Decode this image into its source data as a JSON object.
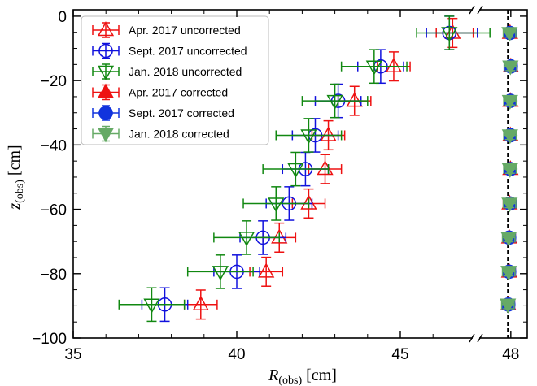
{
  "chart_data": {
    "type": "scatter",
    "xlabel": "R(obs) [cm]",
    "xlabel_main": "R",
    "xlabel_sub": "(obs)",
    "xlabel_unit": " [cm]",
    "ylabel": "z(obs) [cm]",
    "ylabel_main": "z",
    "ylabel_sub": "(obs)",
    "ylabel_unit": " [cm]",
    "xlim": [
      35,
      49
    ],
    "ylim": [
      -100,
      2
    ],
    "x_axis_break_note": "axis is broken between 46.6 and 47.7",
    "xticks": [
      35,
      40,
      45,
      48
    ],
    "xtick_labels": [
      "35",
      "40",
      "45",
      "48"
    ],
    "yticks": [
      0,
      -20,
      -40,
      -60,
      -80,
      -100
    ],
    "ytick_labels": [
      "0",
      "−20",
      "−40",
      "−60",
      "−80",
      "−100"
    ],
    "reference_line_x": 47.93,
    "legend_position": "top-left",
    "series": [
      {
        "name": "Apr. 2017 uncorrected",
        "color": "#ee1111",
        "marker": "triangle-up",
        "filled": false,
        "x": [
          46.6,
          44.8,
          43.6,
          42.8,
          42.7,
          42.2,
          41.3,
          40.9,
          38.9
        ],
        "y": [
          -5.2,
          -15.6,
          -26.3,
          -37,
          -47.5,
          -58.2,
          -68.8,
          -79.4,
          -89.6
        ],
        "xerr": 0.5,
        "yerr": 4.5
      },
      {
        "name": "Sept. 2017 uncorrected",
        "color": "#1111dd",
        "marker": "circle",
        "filled": false,
        "x": [
          46.5,
          44.4,
          43.1,
          42.4,
          42.1,
          41.6,
          40.8,
          40,
          37.8
        ],
        "y": [
          -5.2,
          -15.6,
          -26.3,
          -37,
          -47.5,
          -58.2,
          -68.8,
          -79.4,
          -89.6
        ],
        "xerr": 0.7,
        "yerr": 5.2
      },
      {
        "name": "Jan. 2018 uncorrected",
        "color": "#118811",
        "marker": "triangle-down",
        "filled": false,
        "x": [
          46.5,
          44.2,
          43.0,
          42.2,
          41.8,
          41.2,
          40.3,
          39.5,
          37.4
        ],
        "y": [
          -5.2,
          -15.6,
          -26.3,
          -37,
          -47.5,
          -58.2,
          -68.8,
          -79.4,
          -89.6
        ],
        "xerr": 1.0,
        "yerr": 5.2
      },
      {
        "name": "Apr. 2017 corrected",
        "color": "#ee1111",
        "marker": "triangle-up",
        "filled": true,
        "x": [
          47.98,
          48.0,
          47.99,
          47.99,
          47.99,
          47.97,
          47.96,
          47.96,
          47.94
        ],
        "y": [
          -5.2,
          -15.6,
          -26.3,
          -37,
          -47.5,
          -58.2,
          -68.8,
          -79.4,
          -89.6
        ],
        "xerr": 0.15,
        "yerr": 1.3
      },
      {
        "name": "Sept. 2017 corrected",
        "color": "#1133dd",
        "marker": "circle",
        "filled": true,
        "x": [
          47.98,
          48.0,
          47.99,
          47.99,
          47.99,
          47.98,
          47.96,
          47.96,
          47.94
        ],
        "y": [
          -5.2,
          -15.6,
          -26.3,
          -37,
          -47.5,
          -58.2,
          -68.8,
          -79.4,
          -89.6
        ],
        "xerr": 0.15,
        "yerr": 1.3
      },
      {
        "name": "Jan. 2018 corrected",
        "color": "#66aa66",
        "marker": "triangle-down",
        "filled": true,
        "x": [
          47.97,
          47.99,
          47.98,
          47.98,
          47.98,
          47.97,
          47.95,
          47.95,
          47.93
        ],
        "y": [
          -5.2,
          -15.6,
          -26.3,
          -37,
          -47.5,
          -58.2,
          -68.8,
          -79.4,
          -89.6
        ],
        "xerr": 0.15,
        "yerr": 1.3
      }
    ]
  }
}
